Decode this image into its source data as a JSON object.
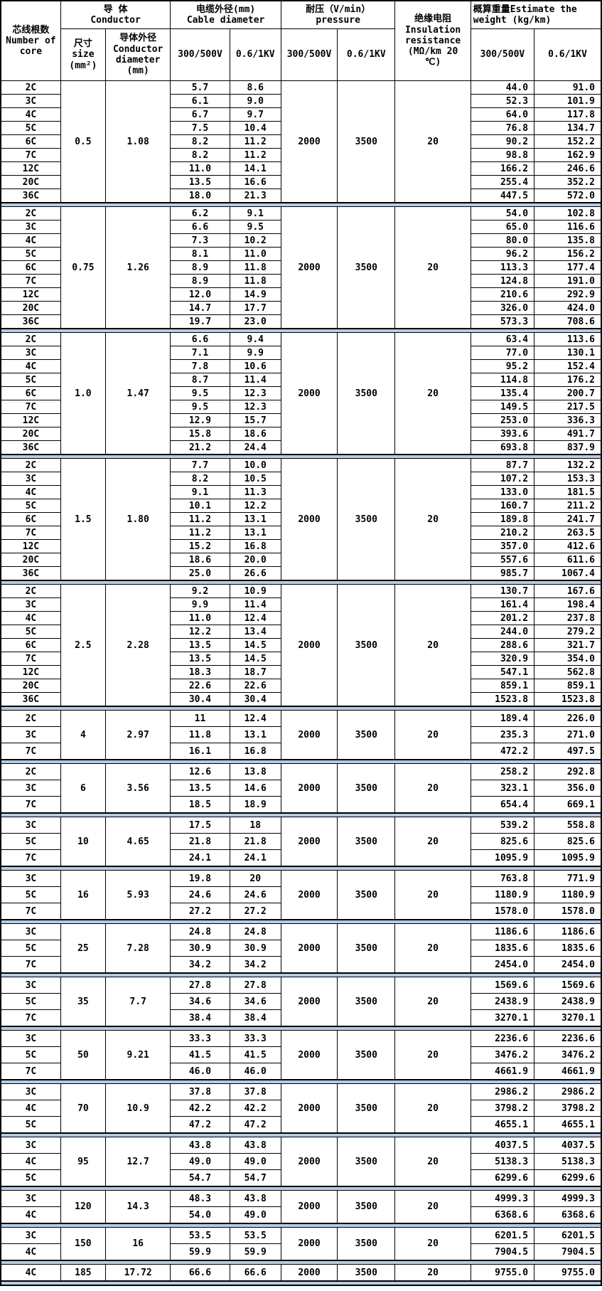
{
  "accent_colors": {
    "separator_fill": "#b5cbe5",
    "grid_line": "#000000",
    "background": "#ffffff"
  },
  "table": {
    "headers": {
      "core": "芯线根数\nNumber of\ncore",
      "conductor": "导  体\nConductor",
      "size": "尺寸\nsize\n(mm²)",
      "conductor_diameter": "导体外径\nConductor\ndiameter\n(mm)",
      "cable_diameter": "电缆外径(mm)\nCable diameter",
      "pressure": "耐压（V/min）\npressure",
      "insulation": "绝缘电阻\nInsulation\nresistance\n(MΩ/km 20\n℃)",
      "weight": "概算重量Estimate the\nweight (kg/km)",
      "v300": "300/500V",
      "v1kv": "0.6/1KV"
    },
    "groups": [
      {
        "size": "0.5",
        "conductor_diameter": "1.08",
        "pressure_300": "2000",
        "pressure_1kv": "3500",
        "resistance": "20",
        "rows": [
          [
            "2C",
            "5.7",
            "8.6",
            "44.0",
            "91.0"
          ],
          [
            "3C",
            "6.1",
            "9.0",
            "52.3",
            "101.9"
          ],
          [
            "4C",
            "6.7",
            "9.7",
            "64.0",
            "117.8"
          ],
          [
            "5C",
            "7.5",
            "10.4",
            "76.8",
            "134.7"
          ],
          [
            "6C",
            "8.2",
            "11.2",
            "90.2",
            "152.2"
          ],
          [
            "7C",
            "8.2",
            "11.2",
            "98.8",
            "162.9"
          ],
          [
            "12C",
            "11.0",
            "14.1",
            "166.2",
            "246.6"
          ],
          [
            "20C",
            "13.5",
            "16.6",
            "255.4",
            "352.2"
          ],
          [
            "36C",
            "18.0",
            "21.3",
            "447.5",
            "572.0"
          ]
        ]
      },
      {
        "size": "0.75",
        "conductor_diameter": "1.26",
        "pressure_300": "2000",
        "pressure_1kv": "3500",
        "resistance": "20",
        "rows": [
          [
            "2C",
            "6.2",
            "9.1",
            "54.0",
            "102.8"
          ],
          [
            "3C",
            "6.6",
            "9.5",
            "65.0",
            "116.6"
          ],
          [
            "4C",
            "7.3",
            "10.2",
            "80.0",
            "135.8"
          ],
          [
            "5C",
            "8.1",
            "11.0",
            "96.2",
            "156.2"
          ],
          [
            "6C",
            "8.9",
            "11.8",
            "113.3",
            "177.4"
          ],
          [
            "7C",
            "8.9",
            "11.8",
            "124.8",
            "191.0"
          ],
          [
            "12C",
            "12.0",
            "14.9",
            "210.6",
            "292.9"
          ],
          [
            "20C",
            "14.7",
            "17.7",
            "326.0",
            "424.0"
          ],
          [
            "36C",
            "19.7",
            "23.0",
            "573.3",
            "708.6"
          ]
        ]
      },
      {
        "size": "1.0",
        "conductor_diameter": "1.47",
        "pressure_300": "2000",
        "pressure_1kv": "3500",
        "resistance": "20",
        "rows": [
          [
            "2C",
            "6.6",
            "9.4",
            "63.4",
            "113.6"
          ],
          [
            "3C",
            "7.1",
            "9.9",
            "77.0",
            "130.1"
          ],
          [
            "4C",
            "7.8",
            "10.6",
            "95.2",
            "152.4"
          ],
          [
            "5C",
            "8.7",
            "11.4",
            "114.8",
            "176.2"
          ],
          [
            "6C",
            "9.5",
            "12.3",
            "135.4",
            "200.7"
          ],
          [
            "7C",
            "9.5",
            "12.3",
            "149.5",
            "217.5"
          ],
          [
            "12C",
            "12.9",
            "15.7",
            "253.0",
            "336.3"
          ],
          [
            "20C",
            "15.8",
            "18.6",
            "393.6",
            "491.7"
          ],
          [
            "36C",
            "21.2",
            "24.4",
            "693.8",
            "837.9"
          ]
        ]
      },
      {
        "size": "1.5",
        "conductor_diameter": "1.80",
        "pressure_300": "2000",
        "pressure_1kv": "3500",
        "resistance": "20",
        "rows": [
          [
            "2C",
            "7.7",
            "10.0",
            "87.7",
            "132.2"
          ],
          [
            "3C",
            "8.2",
            "10.5",
            "107.2",
            "153.3"
          ],
          [
            "4C",
            "9.1",
            "11.3",
            "133.0",
            "181.5"
          ],
          [
            "5C",
            "10.1",
            "12.2",
            "160.7",
            "211.2"
          ],
          [
            "6C",
            "11.2",
            "13.1",
            "189.8",
            "241.7"
          ],
          [
            "7C",
            "11.2",
            "13.1",
            "210.2",
            "263.5"
          ],
          [
            "12C",
            "15.2",
            "16.8",
            "357.0",
            "412.6"
          ],
          [
            "20C",
            "18.6",
            "20.0",
            "557.6",
            "611.6"
          ],
          [
            "36C",
            "25.0",
            "26.6",
            "985.7",
            "1067.4"
          ]
        ]
      },
      {
        "size": "2.5",
        "conductor_diameter": "2.28",
        "pressure_300": "2000",
        "pressure_1kv": "3500",
        "resistance": "20",
        "rows": [
          [
            "2C",
            "9.2",
            "10.9",
            "130.7",
            "167.6"
          ],
          [
            "3C",
            "9.9",
            "11.4",
            "161.4",
            "198.4"
          ],
          [
            "4C",
            "11.0",
            "12.4",
            "201.2",
            "237.8"
          ],
          [
            "5C",
            "12.2",
            "13.4",
            "244.0",
            "279.2"
          ],
          [
            "6C",
            "13.5",
            "14.5",
            "288.6",
            "321.7"
          ],
          [
            "7C",
            "13.5",
            "14.5",
            "320.9",
            "354.0"
          ],
          [
            "12C",
            "18.3",
            "18.7",
            "547.1",
            "562.8"
          ],
          [
            "20C",
            "22.6",
            "22.6",
            "859.1",
            "859.1"
          ],
          [
            "36C",
            "30.4",
            "30.4",
            "1523.8",
            "1523.8"
          ]
        ]
      },
      {
        "size": "4",
        "conductor_diameter": "2.97",
        "pressure_300": "2000",
        "pressure_1kv": "3500",
        "resistance": "20",
        "rows": [
          [
            "2C",
            "11",
            "12.4",
            "189.4",
            "226.0"
          ],
          [
            "3C",
            "11.8",
            "13.1",
            "235.3",
            "271.0"
          ],
          [
            "7C",
            "16.1",
            "16.8",
            "472.2",
            "497.5"
          ]
        ]
      },
      {
        "size": "6",
        "conductor_diameter": "3.56",
        "pressure_300": "2000",
        "pressure_1kv": "3500",
        "resistance": "20",
        "rows": [
          [
            "2C",
            "12.6",
            "13.8",
            "258.2",
            "292.8"
          ],
          [
            "3C",
            "13.5",
            "14.6",
            "323.1",
            "356.0"
          ],
          [
            "7C",
            "18.5",
            "18.9",
            "654.4",
            "669.1"
          ]
        ]
      },
      {
        "size": "10",
        "conductor_diameter": "4.65",
        "pressure_300": "2000",
        "pressure_1kv": "3500",
        "resistance": "20",
        "rows": [
          [
            "3C",
            "17.5",
            "18",
            "539.2",
            "558.8"
          ],
          [
            "5C",
            "21.8",
            "21.8",
            "825.6",
            "825.6"
          ],
          [
            "7C",
            "24.1",
            "24.1",
            "1095.9",
            "1095.9"
          ]
        ]
      },
      {
        "size": "16",
        "conductor_diameter": "5.93",
        "pressure_300": "2000",
        "pressure_1kv": "3500",
        "resistance": "20",
        "rows": [
          [
            "3C",
            "19.8",
            "20",
            "763.8",
            "771.9"
          ],
          [
            "5C",
            "24.6",
            "24.6",
            "1180.9",
            "1180.9"
          ],
          [
            "7C",
            "27.2",
            "27.2",
            "1578.0",
            "1578.0"
          ]
        ]
      },
      {
        "size": "25",
        "conductor_diameter": "7.28",
        "pressure_300": "2000",
        "pressure_1kv": "3500",
        "resistance": "20",
        "rows": [
          [
            "3C",
            "24.8",
            "24.8",
            "1186.6",
            "1186.6"
          ],
          [
            "5C",
            "30.9",
            "30.9",
            "1835.6",
            "1835.6"
          ],
          [
            "7C",
            "34.2",
            "34.2",
            "2454.0",
            "2454.0"
          ]
        ]
      },
      {
        "size": "35",
        "conductor_diameter": "7.7",
        "pressure_300": "2000",
        "pressure_1kv": "3500",
        "resistance": "20",
        "rows": [
          [
            "3C",
            "27.8",
            "27.8",
            "1569.6",
            "1569.6"
          ],
          [
            "5C",
            "34.6",
            "34.6",
            "2438.9",
            "2438.9"
          ],
          [
            "7C",
            "38.4",
            "38.4",
            "3270.1",
            "3270.1"
          ]
        ]
      },
      {
        "size": "50",
        "conductor_diameter": "9.21",
        "pressure_300": "2000",
        "pressure_1kv": "3500",
        "resistance": "20",
        "rows": [
          [
            "3C",
            "33.3",
            "33.3",
            "2236.6",
            "2236.6"
          ],
          [
            "5C",
            "41.5",
            "41.5",
            "3476.2",
            "3476.2"
          ],
          [
            "7C",
            "46.0",
            "46.0",
            "4661.9",
            "4661.9"
          ]
        ]
      },
      {
        "size": "70",
        "conductor_diameter": "10.9",
        "pressure_300": "2000",
        "pressure_1kv": "3500",
        "resistance": "20",
        "rows": [
          [
            "3C",
            "37.8",
            "37.8",
            "2986.2",
            "2986.2"
          ],
          [
            "4C",
            "42.2",
            "42.2",
            "3798.2",
            "3798.2"
          ],
          [
            "5C",
            "47.2",
            "47.2",
            "4655.1",
            "4655.1"
          ]
        ]
      },
      {
        "size": "95",
        "conductor_diameter": "12.7",
        "pressure_300": "2000",
        "pressure_1kv": "3500",
        "resistance": "20",
        "rows": [
          [
            "3C",
            "43.8",
            "43.8",
            "4037.5",
            "4037.5"
          ],
          [
            "4C",
            "49.0",
            "49.0",
            "5138.3",
            "5138.3"
          ],
          [
            "5C",
            "54.7",
            "54.7",
            "6299.6",
            "6299.6"
          ]
        ]
      },
      {
        "size": "120",
        "conductor_diameter": "14.3",
        "pressure_300": "2000",
        "pressure_1kv": "3500",
        "resistance": "20",
        "rows": [
          [
            "3C",
            "48.3",
            "43.8",
            "4999.3",
            "4999.3"
          ],
          [
            "4C",
            "54.0",
            "49.0",
            "6368.6",
            "6368.6"
          ]
        ]
      },
      {
        "size": "150",
        "conductor_diameter": "16",
        "pressure_300": "2000",
        "pressure_1kv": "3500",
        "resistance": "20",
        "rows": [
          [
            "3C",
            "53.5",
            "53.5",
            "6201.5",
            "6201.5"
          ],
          [
            "4C",
            "59.9",
            "59.9",
            "7904.5",
            "7904.5"
          ]
        ]
      },
      {
        "size": "185",
        "conductor_diameter": "17.72",
        "pressure_300": "2000",
        "pressure_1kv": "3500",
        "resistance": "20",
        "rows": [
          [
            "4C",
            "66.6",
            "66.6",
            "9755.0",
            "9755.0"
          ]
        ]
      }
    ]
  }
}
